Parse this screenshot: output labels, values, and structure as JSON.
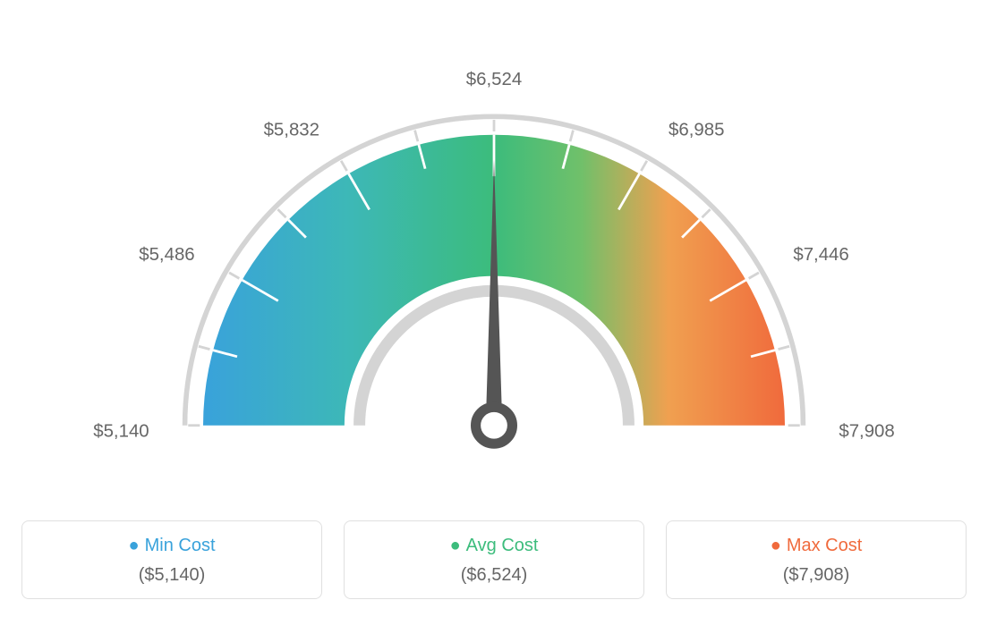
{
  "gauge": {
    "type": "gauge",
    "min_value": 5140,
    "max_value": 7908,
    "avg_value": 6524,
    "tick_labels": [
      "$5,140",
      "$5,486",
      "$5,832",
      "$6,524",
      "$6,985",
      "$7,446",
      "$7,908"
    ],
    "tick_angles_deg": [
      -90,
      -60,
      -30,
      0,
      30,
      60,
      90
    ],
    "needle_angle_deg": 0,
    "gradient_colors": {
      "start": "#39a2db",
      "mid_start": "#3db8b7",
      "mid": "#3cbc7c",
      "mid_end": "#70c06a",
      "end_warm": "#f0a050",
      "end": "#f06a3c"
    },
    "outer_arc_color": "#d4d4d4",
    "inner_arc_color": "#d4d4d4",
    "tick_color_inner": "#ffffff",
    "tick_color_outer": "#d4d4d4",
    "needle_color": "#555555",
    "label_color": "#666666",
    "label_fontsize": 22,
    "background_color": "#ffffff",
    "outer_radius": 350,
    "inner_radius": 180
  },
  "legend": {
    "min": {
      "label": "Min Cost",
      "value": "($5,140)",
      "dot_color": "#39a2db"
    },
    "avg": {
      "label": "Avg Cost",
      "value": "($6,524)",
      "dot_color": "#3cbc7c"
    },
    "max": {
      "label": "Max Cost",
      "value": "($7,908)",
      "dot_color": "#f06a3c"
    },
    "card_border_color": "#e0e0e0",
    "card_border_radius": 8,
    "title_fontsize": 20,
    "value_fontsize": 20,
    "value_color": "#666666"
  }
}
